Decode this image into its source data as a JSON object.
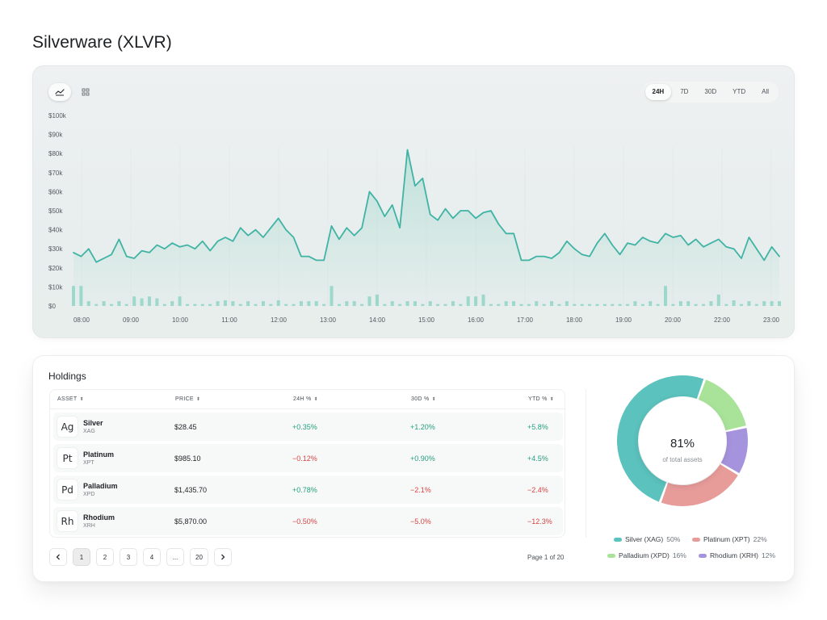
{
  "page": {
    "title": "Silverware (XLVR)"
  },
  "chart_toolbar": {
    "view_icons": [
      "line-chart-icon",
      "grid-view-icon"
    ],
    "ranges": [
      "24H",
      "7D",
      "30D",
      "YTD",
      "All"
    ],
    "active_range": "24H"
  },
  "chart_data": {
    "type": "line",
    "y_ticks": [
      "$100k",
      "$90k",
      "$80k",
      "$70k",
      "$60k",
      "$50k",
      "$40k",
      "$30k",
      "$20k",
      "$10k",
      "$0"
    ],
    "ylim": [
      0,
      100000
    ],
    "x_ticks": [
      "08:00",
      "09:00",
      "10:00",
      "11:00",
      "12:00",
      "13:00",
      "14:00",
      "15:00",
      "16:00",
      "17:00",
      "18:00",
      "19:00",
      "20:00",
      "22:00",
      "23:00"
    ],
    "line_color": "#3fb3a4",
    "bar_color": "#8fd3c6",
    "series": [
      {
        "values": [
          28000,
          26000,
          30000,
          23000,
          25000,
          27000,
          35000,
          26000,
          25000,
          29000,
          28000,
          32000,
          30000,
          33000,
          31000,
          32000,
          30000,
          34000,
          29000,
          34000,
          36000,
          34000,
          41000,
          37000,
          40000,
          36000,
          41000,
          46000,
          40000,
          36000,
          26000,
          26000,
          24000,
          24000,
          42000,
          35000,
          41000,
          37000,
          41000,
          60000,
          55000,
          47000,
          53000,
          41000,
          82000,
          63000,
          67000,
          48000,
          45000,
          51000,
          46000,
          50000,
          50000,
          46000,
          49000,
          50000,
          43000,
          38000,
          38000,
          24000,
          24000,
          26000,
          26000,
          25000,
          28000,
          34000,
          30000,
          27000,
          26000,
          33000,
          38000,
          32000,
          27000,
          33000,
          32000,
          36000,
          34000,
          33000,
          38000,
          36000,
          37000,
          32000,
          35000,
          31000,
          33000,
          35000,
          31000,
          30000,
          25000,
          36000,
          30000,
          24000,
          31000,
          26000
        ]
      },
      {
        "values": [
          10500,
          10500,
          2500,
          1000,
          2500,
          1000,
          2500,
          1000,
          5000,
          4000,
          5000,
          4000,
          1000,
          2500,
          5000,
          1000,
          1000,
          1000,
          1000,
          2500,
          3000,
          2500,
          1000,
          2500,
          1000,
          2500,
          1000,
          3000,
          1000,
          1000,
          2500,
          2500,
          2500,
          1000,
          10500,
          1000,
          2500,
          2500,
          1000,
          5000,
          6000,
          1000,
          2500,
          1000,
          2500,
          2500,
          1000,
          2500,
          1000,
          1000,
          2500,
          1000,
          5000,
          5000,
          6000,
          1000,
          1000,
          2500,
          2500,
          1000,
          1000,
          2500,
          1000,
          2500,
          1000,
          2500,
          1000,
          1000,
          1000,
          1000,
          1000,
          1000,
          1000,
          1000,
          2500,
          1000,
          2500,
          1000,
          10500,
          1000,
          2500,
          2500,
          1000,
          1000,
          2500,
          6000,
          1000,
          3000,
          1000,
          2500,
          1000,
          2500,
          2500,
          2500
        ]
      }
    ]
  },
  "holdings": {
    "title": "Holdings",
    "columns": [
      {
        "label": "ASSET"
      },
      {
        "label": "PRICE"
      },
      {
        "label": "24H %"
      },
      {
        "label": "30D %"
      },
      {
        "label": "YTD %"
      }
    ],
    "rows": [
      {
        "symbol": "Ag",
        "name": "Silver",
        "code": "XAG",
        "price": "$28.45",
        "d24": "+0.35%",
        "d30": "+1.20%",
        "ytd": "+5.8%"
      },
      {
        "symbol": "Pt",
        "name": "Platinum",
        "code": "XPT",
        "price": "$985.10",
        "d24": "−0.12%",
        "d30": "+0.90%",
        "ytd": "+4.5%"
      },
      {
        "symbol": "Pd",
        "name": "Palladium",
        "code": "XPD",
        "price": "$1,435.70",
        "d24": "+0.78%",
        "d30": "−2.1%",
        "ytd": "−2.4%"
      },
      {
        "symbol": "Rh",
        "name": "Rhodium",
        "code": "XRH",
        "price": "$5,870.00",
        "d24": "−0.50%",
        "d30": "−5.0%",
        "ytd": "−12.3%"
      }
    ],
    "pagination": {
      "pages": [
        "1",
        "2",
        "3",
        "4",
        "...",
        "20"
      ],
      "active": "1",
      "info": "Page 1 of 20"
    }
  },
  "allocation": {
    "center_value": "81%",
    "center_label": "of total assets",
    "slices": [
      {
        "name": "Silver (XAG)",
        "pct": "50%",
        "value": 50,
        "color": "#5bc2bd"
      },
      {
        "name": "Platinum (XPT)",
        "pct": "22%",
        "value": 22,
        "color": "#e89c9a"
      },
      {
        "name": "Palladium (XPD)",
        "pct": "16%",
        "value": 16,
        "color": "#a9e39a"
      },
      {
        "name": "Rhodium (XRH)",
        "pct": "12%",
        "value": 12,
        "color": "#a593dd"
      }
    ]
  }
}
